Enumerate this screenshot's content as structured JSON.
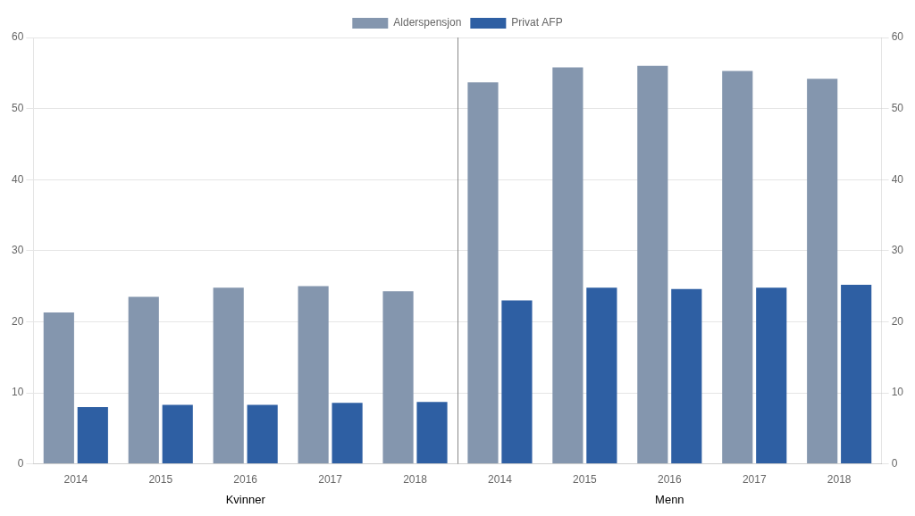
{
  "chart_data": {
    "type": "bar",
    "groups": [
      {
        "name": "Kvinner",
        "categories": [
          "2014",
          "2015",
          "2016",
          "2017",
          "2018"
        ]
      },
      {
        "name": "Menn",
        "categories": [
          "2014",
          "2015",
          "2016",
          "2017",
          "2018"
        ]
      }
    ],
    "series": [
      {
        "name": "Alderspensjon",
        "color": "#8496ae",
        "values": [
          21.3,
          23.5,
          24.8,
          25.0,
          24.3,
          53.7,
          55.8,
          56.0,
          55.3,
          54.2
        ]
      },
      {
        "name": "Privat AFP",
        "color": "#2e5fa3",
        "values": [
          8.0,
          8.3,
          8.3,
          8.6,
          8.7,
          23.0,
          24.8,
          24.6,
          24.8,
          25.2
        ]
      }
    ],
    "ylim": [
      0,
      60
    ],
    "yticks": [
      0,
      10,
      20,
      30,
      40,
      50,
      60
    ],
    "y2lim": [
      0,
      60
    ],
    "y2ticks": [
      0,
      10,
      20,
      30,
      40,
      50,
      60
    ],
    "grid": true,
    "legend": "top"
  }
}
